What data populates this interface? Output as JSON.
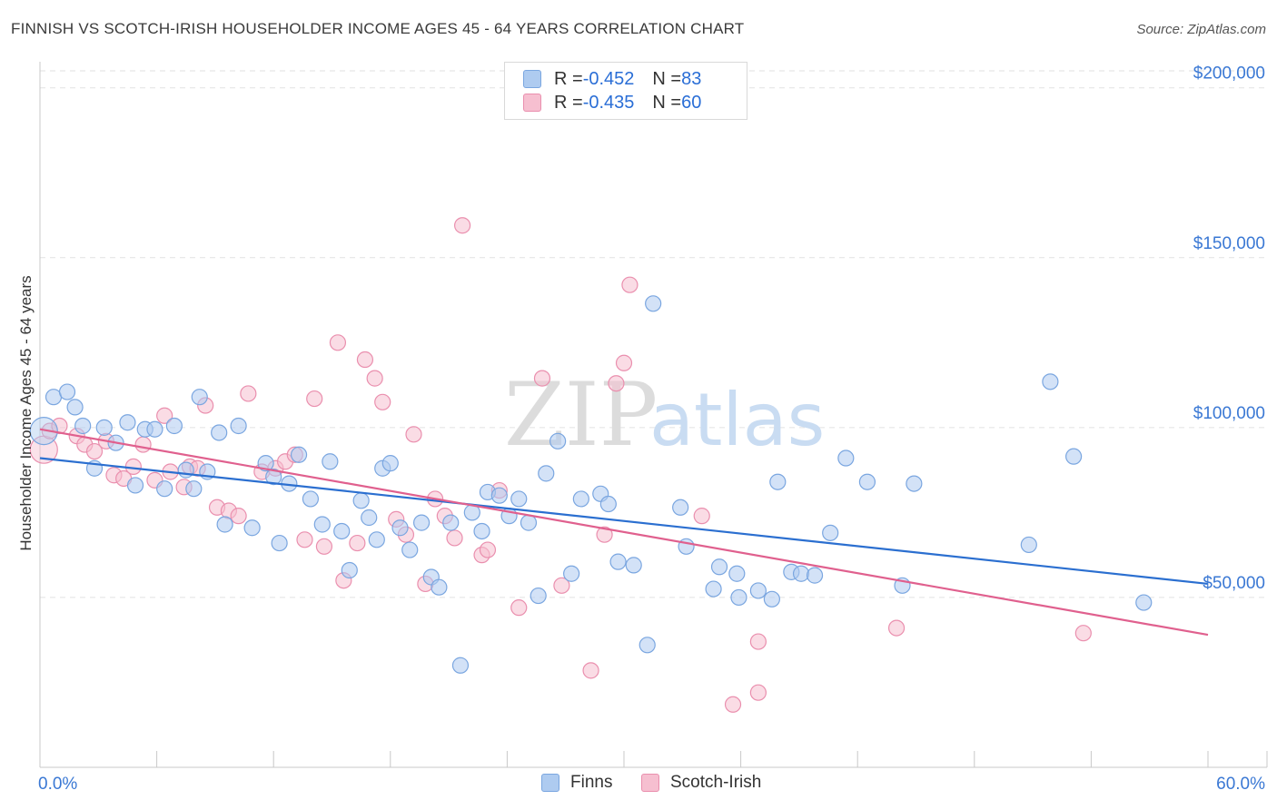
{
  "header": {
    "title": "FINNISH VS SCOTCH-IRISH HOUSEHOLDER INCOME AGES 45 - 64 YEARS CORRELATION CHART",
    "source": "Source: ZipAtlas.com"
  },
  "watermark": {
    "zip": "ZIP",
    "atlas": "atlas"
  },
  "legend": {
    "rows": [
      {
        "r_label": "R = ",
        "r_value": "-0.452",
        "n_label": "N = ",
        "n_value": "83"
      },
      {
        "r_label": "R = ",
        "r_value": "-0.435",
        "n_label": "N = ",
        "n_value": "60"
      }
    ]
  },
  "bottom_legend": {
    "finns": "Finns",
    "scotch": "Scotch-Irish"
  },
  "colors": {
    "finns_fill": "#aecbf0",
    "finns_stroke": "#7aa6e0",
    "finns_line": "#2b6fd0",
    "scotch_fill": "#f6bfd0",
    "scotch_stroke": "#ea8fae",
    "scotch_line": "#e0608e",
    "axis_label": "#3a78d4",
    "grid": "#e2e2e2"
  },
  "chart_data": {
    "type": "scatter",
    "title": "FINNISH VS SCOTCH-IRISH HOUSEHOLDER INCOME AGES 45 - 64 YEARS CORRELATION CHART",
    "xlabel": "",
    "ylabel": "Householder Income Ages 45 - 64 years",
    "xlim": [
      0,
      60
    ],
    "ylim": [
      0,
      205000
    ],
    "x_tick_labels": [
      "0.0%",
      "60.0%"
    ],
    "y_ticks": [
      50000,
      100000,
      150000,
      200000
    ],
    "y_tick_labels": [
      "$50,000",
      "$100,000",
      "$150,000",
      "$200,000"
    ],
    "grid": true,
    "legend_position": "top-center",
    "series": [
      {
        "name": "Finns",
        "r": -0.452,
        "n": 83,
        "trend": {
          "x": [
            0,
            60
          ],
          "y": [
            91000,
            54000
          ]
        },
        "points": [
          [
            0.2,
            99000
          ],
          [
            0.7,
            109000
          ],
          [
            1.4,
            110500
          ],
          [
            1.8,
            106000
          ],
          [
            2.2,
            100500
          ],
          [
            2.8,
            88000
          ],
          [
            3.3,
            100000
          ],
          [
            3.9,
            95500
          ],
          [
            4.5,
            101500
          ],
          [
            4.9,
            83000
          ],
          [
            5.4,
            99500
          ],
          [
            5.9,
            99500
          ],
          [
            6.4,
            82000
          ],
          [
            6.9,
            100500
          ],
          [
            7.5,
            87500
          ],
          [
            7.9,
            82000
          ],
          [
            8.2,
            109000
          ],
          [
            8.6,
            87000
          ],
          [
            9.2,
            98500
          ],
          [
            9.5,
            71500
          ],
          [
            10.2,
            100500
          ],
          [
            10.9,
            70500
          ],
          [
            11.6,
            89500
          ],
          [
            12.0,
            85500
          ],
          [
            12.3,
            66000
          ],
          [
            12.8,
            83500
          ],
          [
            13.3,
            92000
          ],
          [
            13.9,
            79000
          ],
          [
            14.5,
            71500
          ],
          [
            14.9,
            90000
          ],
          [
            15.5,
            69500
          ],
          [
            15.9,
            58000
          ],
          [
            16.5,
            78500
          ],
          [
            16.9,
            73500
          ],
          [
            17.3,
            67000
          ],
          [
            17.6,
            88000
          ],
          [
            18.0,
            89500
          ],
          [
            18.5,
            70500
          ],
          [
            19.0,
            64000
          ],
          [
            19.6,
            72000
          ],
          [
            20.1,
            56000
          ],
          [
            20.5,
            53000
          ],
          [
            21.1,
            72000
          ],
          [
            21.6,
            30000
          ],
          [
            22.2,
            75000
          ],
          [
            22.7,
            69500
          ],
          [
            23.0,
            81000
          ],
          [
            23.6,
            80000
          ],
          [
            24.1,
            74000
          ],
          [
            24.6,
            79000
          ],
          [
            25.1,
            72000
          ],
          [
            25.6,
            50500
          ],
          [
            26.0,
            86500
          ],
          [
            26.6,
            96000
          ],
          [
            27.3,
            57000
          ],
          [
            27.8,
            79000
          ],
          [
            28.8,
            80500
          ],
          [
            29.2,
            77500
          ],
          [
            29.7,
            60500
          ],
          [
            30.5,
            59500
          ],
          [
            31.2,
            36000
          ],
          [
            31.5,
            136500
          ],
          [
            32.9,
            76500
          ],
          [
            33.2,
            65000
          ],
          [
            34.6,
            52500
          ],
          [
            34.9,
            59000
          ],
          [
            35.8,
            57000
          ],
          [
            35.9,
            50000
          ],
          [
            36.9,
            52000
          ],
          [
            37.6,
            49500
          ],
          [
            37.9,
            84000
          ],
          [
            38.6,
            57500
          ],
          [
            39.1,
            57000
          ],
          [
            39.8,
            56500
          ],
          [
            40.6,
            69000
          ],
          [
            41.4,
            91000
          ],
          [
            42.5,
            84000
          ],
          [
            44.3,
            53500
          ],
          [
            44.9,
            83500
          ],
          [
            50.8,
            65500
          ],
          [
            51.9,
            113500
          ],
          [
            53.1,
            91500
          ],
          [
            56.7,
            48500
          ]
        ]
      },
      {
        "name": "Scotch-Irish",
        "r": -0.435,
        "n": 60,
        "trend": {
          "x": [
            0,
            60
          ],
          "y": [
            99500,
            39000
          ]
        },
        "points": [
          [
            0.2,
            93500
          ],
          [
            0.5,
            99000
          ],
          [
            1.0,
            100500
          ],
          [
            1.9,
            97500
          ],
          [
            2.3,
            95000
          ],
          [
            2.8,
            93000
          ],
          [
            3.4,
            96000
          ],
          [
            3.8,
            86000
          ],
          [
            4.3,
            85000
          ],
          [
            4.8,
            88500
          ],
          [
            5.3,
            95000
          ],
          [
            5.9,
            84500
          ],
          [
            6.4,
            103500
          ],
          [
            6.7,
            87000
          ],
          [
            7.4,
            82500
          ],
          [
            7.7,
            88500
          ],
          [
            8.1,
            88000
          ],
          [
            8.5,
            106500
          ],
          [
            9.1,
            76500
          ],
          [
            9.7,
            75500
          ],
          [
            10.2,
            74000
          ],
          [
            10.7,
            110000
          ],
          [
            11.4,
            87000
          ],
          [
            12.1,
            88000
          ],
          [
            12.6,
            90000
          ],
          [
            13.1,
            92000
          ],
          [
            13.6,
            67000
          ],
          [
            14.1,
            108500
          ],
          [
            14.6,
            65000
          ],
          [
            15.3,
            125000
          ],
          [
            15.6,
            55000
          ],
          [
            16.3,
            66000
          ],
          [
            16.7,
            120000
          ],
          [
            17.2,
            114500
          ],
          [
            17.6,
            107500
          ],
          [
            18.3,
            73000
          ],
          [
            18.8,
            68500
          ],
          [
            19.2,
            98000
          ],
          [
            19.8,
            54000
          ],
          [
            20.3,
            79000
          ],
          [
            20.8,
            74000
          ],
          [
            21.3,
            67500
          ],
          [
            21.7,
            159500
          ],
          [
            22.7,
            62500
          ],
          [
            23.0,
            64000
          ],
          [
            23.6,
            81500
          ],
          [
            24.6,
            47000
          ],
          [
            25.8,
            114500
          ],
          [
            26.8,
            53500
          ],
          [
            28.3,
            28500
          ],
          [
            29.0,
            68500
          ],
          [
            29.6,
            113000
          ],
          [
            30.0,
            119000
          ],
          [
            30.3,
            142000
          ],
          [
            34.0,
            74000
          ],
          [
            35.6,
            18500
          ],
          [
            36.9,
            37000
          ],
          [
            36.9,
            22000
          ],
          [
            44.0,
            41000
          ],
          [
            53.6,
            39500
          ]
        ]
      }
    ]
  }
}
